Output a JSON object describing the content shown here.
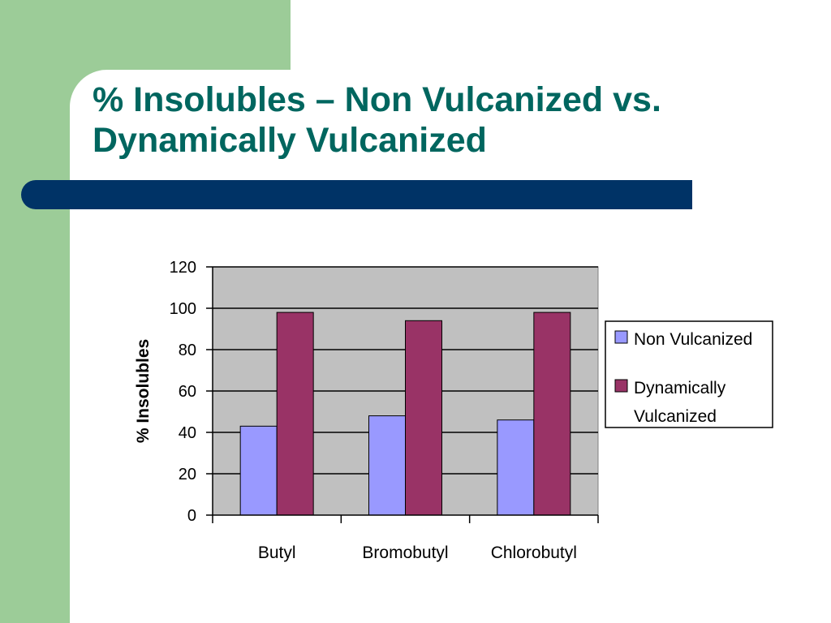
{
  "slide": {
    "title_line1": "% Insolubles – Non Vulcanized vs.",
    "title_line2": "Dynamically Vulcanized",
    "colors": {
      "side_panel": "#9ccc98",
      "title_text": "#00665f",
      "title_bar": "#003366"
    }
  },
  "chart_data": {
    "type": "bar",
    "categories": [
      "Butyl",
      "Bromobutyl",
      "Chlorobutyl"
    ],
    "series": [
      {
        "name": "Non Vulcanized",
        "values": [
          43,
          48,
          46
        ],
        "color": "#9999ff"
      },
      {
        "name": "Dynamically Vulcanized",
        "name_lines": [
          "Dynamically",
          "Vulcanized"
        ],
        "values": [
          98,
          94,
          98
        ],
        "color": "#993366"
      }
    ],
    "title": "",
    "xlabel": "",
    "ylabel": "% Insolubles",
    "ylim": [
      0,
      120
    ],
    "yticks": [
      0,
      20,
      40,
      60,
      80,
      100,
      120
    ],
    "grid": true,
    "plot_background": "#c0c0c0",
    "legend_position": "right"
  }
}
